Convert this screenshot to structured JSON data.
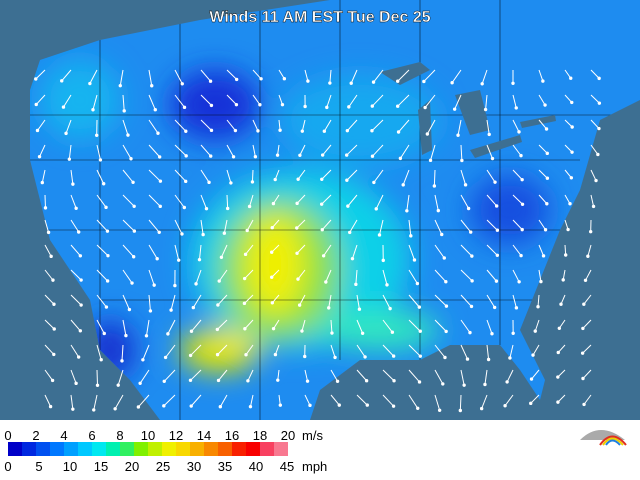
{
  "title": "Winds 11 AM EST Tue Dec 25",
  "legend": {
    "ms_labels": [
      0,
      2,
      4,
      6,
      8,
      10,
      12,
      14,
      16,
      18,
      20
    ],
    "ms_unit": "m/s",
    "mph_labels": [
      0,
      5,
      10,
      15,
      20,
      25,
      30,
      35,
      40,
      45
    ],
    "mph_unit": "mph"
  }
}
